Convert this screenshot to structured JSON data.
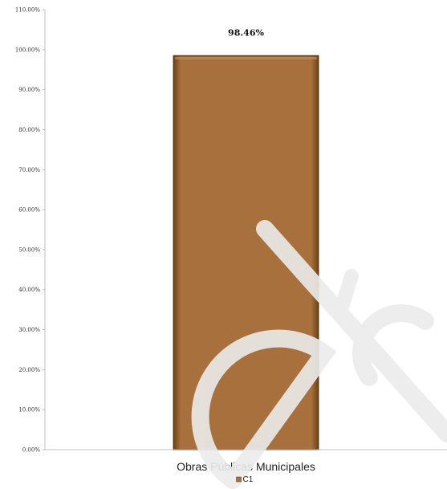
{
  "chart_data": {
    "type": "bar",
    "categories": [
      "Obras Públicas Municipales"
    ],
    "series": [
      {
        "name": "C1",
        "values": [
          98.46
        ],
        "color": "#A8703C"
      }
    ],
    "data_labels": [
      "98.46%"
    ],
    "y_ticks": [
      0,
      10,
      20,
      30,
      40,
      50,
      60,
      70,
      80,
      90,
      100,
      110
    ],
    "y_tick_labels": [
      "0.00%",
      "10.00%",
      "20.00%",
      "30.00%",
      "40.00%",
      "50.00%",
      "60.00%",
      "70.00%",
      "80.00%",
      "90.00%",
      "100.00%",
      "110.00%"
    ],
    "ylim": [
      0,
      110
    ],
    "grid": false,
    "legend_position": "bottom",
    "watermark": "Púb"
  }
}
